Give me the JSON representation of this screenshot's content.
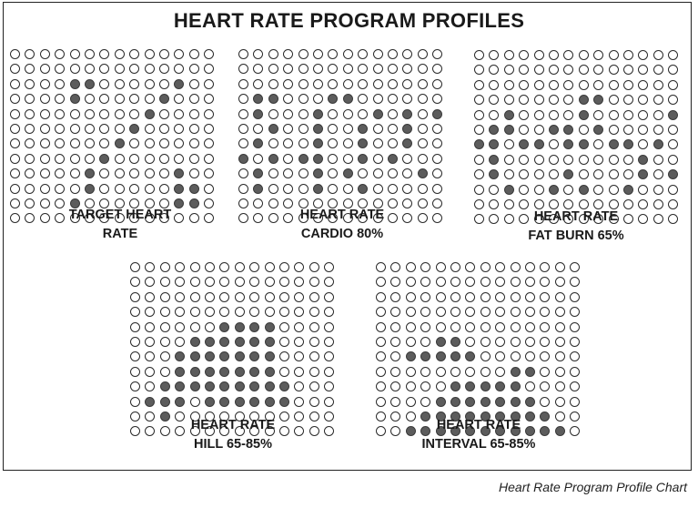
{
  "title": "HEART RATE PROGRAM PROFILES",
  "caption": "Heart Rate Program Profile Chart",
  "colors": {
    "filled": "#5c5c5c",
    "empty": "#ffffff",
    "outline": "#2a2a2a"
  },
  "profiles": [
    {
      "name": "TARGET HEART RATE",
      "label_lines": [
        "TARGET HEART",
        "RATE"
      ],
      "rows": [
        "00000000000000",
        "00000000000000",
        "00001100000100",
        "00001000001000",
        "00000000010000",
        "00000000100000",
        "00000001000000",
        "00000010000000",
        "00000100000100",
        "00000100000110",
        "00001000000110",
        "00000000000000"
      ]
    },
    {
      "name": "HEART RATE CARDIO 80%",
      "label_lines": [
        "HEART RATE",
        "CARDIO 80%"
      ],
      "rows": [
        "00000000000000",
        "00000000000000",
        "00000000000000",
        "01100011000000",
        "01000100010101",
        "00100100100100",
        "01000100100100",
        "10101100101000",
        "01000101000010",
        "01000100100000",
        "00000000000000",
        "00000000000000"
      ]
    },
    {
      "name": "HEART RATE FAT BURN 65%",
      "label_lines": [
        "HEART RATE",
        "FAT BURN 65%"
      ],
      "rows": [
        "00000000000000",
        "00000000000000",
        "00000000000000",
        "00000001100000",
        "00100001000001",
        "01100110100000",
        "11011011011010",
        "01000000000100",
        "01000010000101",
        "00100101001000",
        "00000000000000",
        "00000000000000"
      ]
    },
    {
      "name": "HEART RATE HILL 65-85%",
      "label_lines": [
        "HEART RATE",
        "HILL 65-85%"
      ],
      "rows": [
        "00000000000000",
        "00000000000000",
        "00000000000000",
        "00000000000000",
        "00000011110000",
        "00001111110000",
        "00011111110000",
        "00011111110000",
        "00111111111000",
        "01110111111000",
        "00100000000000",
        "00000000000000"
      ]
    },
    {
      "name": "HEART RATE INTERVAL 65-85%",
      "label_lines": [
        "HEART RATE",
        "INTERVAL 65-85%"
      ],
      "rows": [
        "00000000000000",
        "00000000000000",
        "00000000000000",
        "00000000000000",
        "00000000000000",
        "00001100000000",
        "00111110000000",
        "00000000011000",
        "00000111110000",
        "00001111111000",
        "00011111111100",
        "00111111111110"
      ]
    }
  ]
}
